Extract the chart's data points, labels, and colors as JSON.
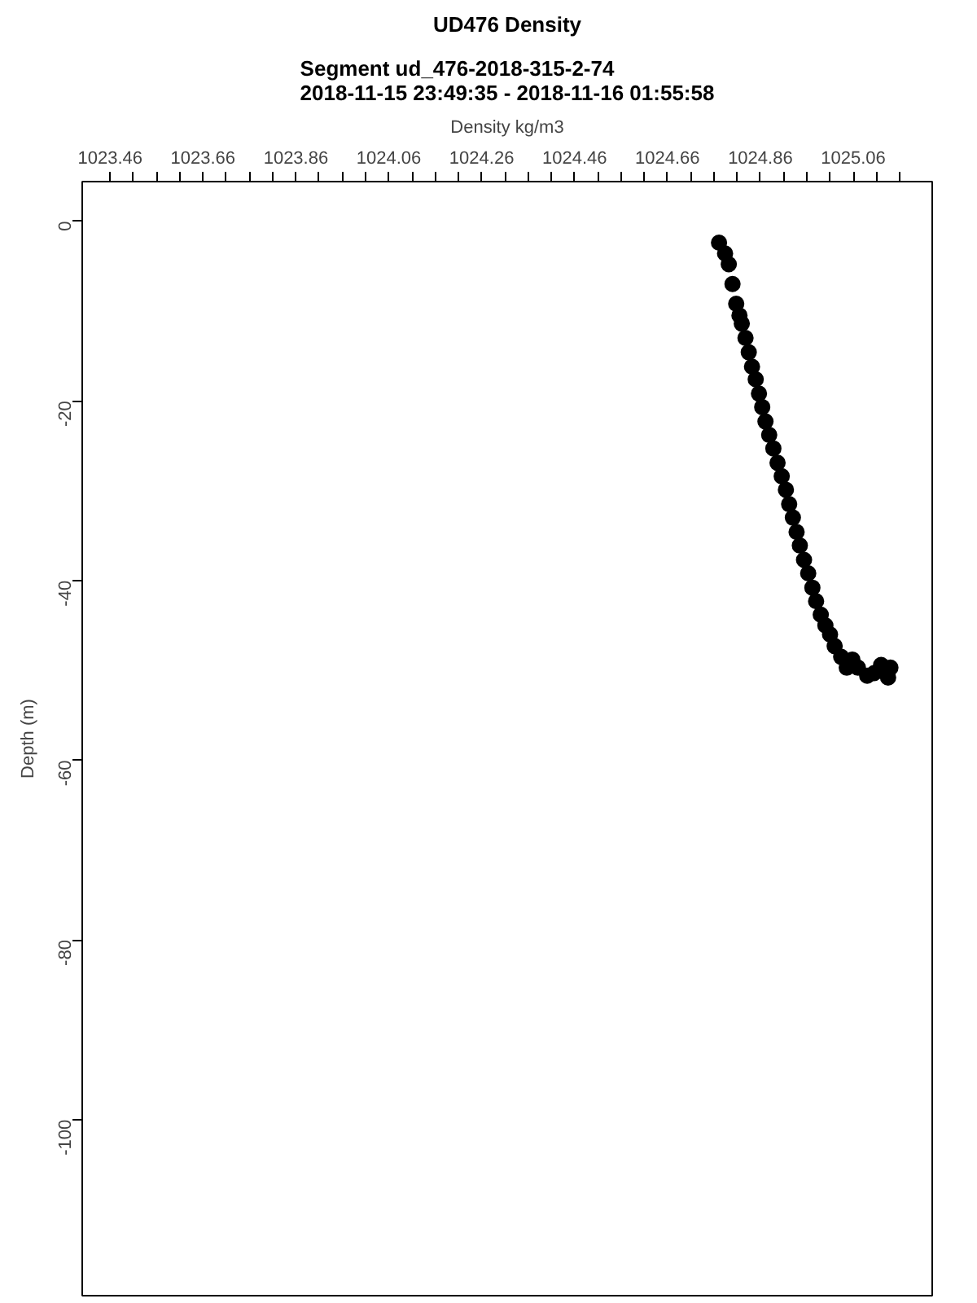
{
  "chart_data": {
    "type": "scatter",
    "title": "UD476 Density",
    "subtitle": "Segment ud_476-2018-315-2-74\n2018-11-15 23:49:35 - 2018-11-16 01:55:58",
    "xlabel": "Density kg/m3",
    "ylabel": "Depth (m)",
    "x": [
      1024.771,
      1024.784,
      1024.792,
      1024.8,
      1024.808,
      1024.815,
      1024.82,
      1024.828,
      1024.835,
      1024.842,
      1024.85,
      1024.857,
      1024.864,
      1024.871,
      1024.879,
      1024.888,
      1024.897,
      1024.906,
      1024.915,
      1024.922,
      1024.93,
      1024.938,
      1024.945,
      1024.954,
      1024.963,
      1024.972,
      1024.98,
      1024.99,
      1025.0,
      1025.01,
      1025.02,
      1025.034,
      1025.046,
      1025.058,
      1025.07,
      1025.09,
      1025.105,
      1025.12,
      1025.14,
      1025.135
    ],
    "values": [
      -2.4,
      -3.6,
      -4.8,
      -7,
      -9.2,
      -10.5,
      -11.4,
      -13,
      -14.6,
      -16.2,
      -17.6,
      -19.2,
      -20.7,
      -22.3,
      -23.8,
      -25.3,
      -26.9,
      -28.4,
      -29.9,
      -31.5,
      -33,
      -34.6,
      -36.1,
      -37.7,
      -39.2,
      -40.8,
      -42.3,
      -43.8,
      -45,
      -46,
      -47.3,
      -48.5,
      -49.7,
      -48.8,
      -49.7,
      -50.6,
      -50.3,
      -49.4,
      -49.7,
      -50.8
    ],
    "color": "#000000",
    "marker": "circle",
    "xlim": [
      1023.4,
      1025.23
    ],
    "ylim": [
      -119.6,
      4.4
    ],
    "xticks": [
      1023.46,
      {
        "value": 1023.51,
        "label": null
      },
      {
        "value": 1023.56,
        "label": null
      },
      {
        "value": 1023.61,
        "label": null
      },
      1023.66,
      {
        "value": 1023.71,
        "label": null
      },
      {
        "value": 1023.76,
        "label": null
      },
      {
        "value": 1023.81,
        "label": null
      },
      1023.86,
      {
        "value": 1023.91,
        "label": null
      },
      {
        "value": 1023.96,
        "label": null
      },
      {
        "value": 1024.01,
        "label": null
      },
      1024.06,
      {
        "value": 1024.11,
        "label": null
      },
      {
        "value": 1024.16,
        "label": null
      },
      {
        "value": 1024.21,
        "label": null
      },
      1024.26,
      {
        "value": 1024.31,
        "label": null
      },
      {
        "value": 1024.36,
        "label": null
      },
      {
        "value": 1024.41,
        "label": null
      },
      1024.46,
      {
        "value": 1024.51,
        "label": null
      },
      {
        "value": 1024.56,
        "label": null
      },
      {
        "value": 1024.61,
        "label": null
      },
      1024.66,
      {
        "value": 1024.71,
        "label": null
      },
      {
        "value": 1024.76,
        "label": null
      },
      {
        "value": 1024.81,
        "label": null
      },
      1024.86,
      {
        "value": 1024.91,
        "label": null
      },
      {
        "value": 1024.96,
        "label": null
      },
      {
        "value": 1025.01,
        "label": null
      },
      1025.06,
      {
        "value": 1025.11,
        "label": null
      },
      {
        "value": 1025.16,
        "label": null
      }
    ],
    "yticks": [
      0,
      -20,
      -40,
      -60,
      -80,
      -100
    ],
    "grid": false
  }
}
